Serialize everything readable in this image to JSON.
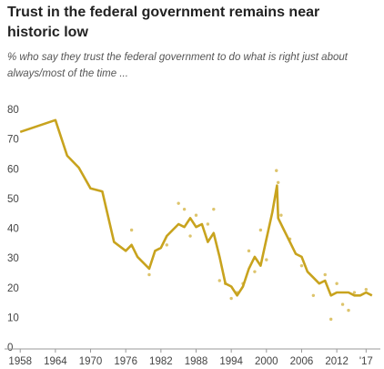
{
  "chart_data": {
    "type": "line",
    "title": [
      "Trust in the federal government remains near",
      "historic low"
    ],
    "subtitle": [
      "% who say they trust the federal government to do what is right just about",
      "always/most of the time ..."
    ],
    "xlim": [
      1957.5,
      2018.5
    ],
    "ylim": [
      0,
      80
    ],
    "yticks": [
      0,
      10,
      20,
      30,
      40,
      50,
      60,
      70,
      80
    ],
    "xticks": [
      1958,
      1964,
      1970,
      1976,
      1982,
      1988,
      1994,
      2000,
      2006,
      2012,
      {
        "value": 2017,
        "label": "'17"
      }
    ],
    "grid": false,
    "series": [
      {
        "color": "#c8a31e",
        "x": [
          1958,
          1964,
          1966,
          1968,
          1970,
          1972,
          1974,
          1976,
          1977,
          1978,
          1980,
          1981,
          1982,
          1983,
          1984,
          1985,
          1986,
          1987,
          1988,
          1989,
          1990,
          1991,
          1992,
          1993,
          1994,
          1995,
          1996,
          1997,
          1998,
          1999,
          2000,
          2001,
          2001.8,
          2002,
          2003,
          2004,
          2005,
          2006,
          2007,
          2008,
          2009,
          2010,
          2011,
          2012,
          2013,
          2014,
          2015,
          2016,
          2017,
          2018
        ],
        "values": [
          73,
          77,
          65,
          61,
          54,
          53,
          36,
          33,
          35,
          31,
          27,
          33,
          34,
          38,
          40,
          42,
          41,
          44,
          41,
          42,
          36,
          39,
          31,
          22,
          21,
          18,
          21,
          27,
          31,
          28,
          37,
          46,
          55,
          44,
          40,
          36,
          32,
          31,
          26,
          24,
          22,
          23,
          18,
          19,
          19,
          19,
          18,
          18,
          19,
          18
        ]
      },
      {
        "color": "#ddc46c",
        "x": [
          1977,
          1980,
          1983,
          1985,
          1986,
          1987,
          1988,
          1990,
          1991,
          1992,
          1993,
          1994,
          1995,
          1996,
          1997,
          1998,
          1999,
          2000,
          2001.7,
          2002,
          2002.5,
          2004,
          2006,
          2008,
          2010,
          2011,
          2012,
          2013,
          2014,
          2015,
          2017
        ],
        "values": [
          40,
          25,
          35,
          49,
          47,
          38,
          45,
          42,
          47,
          23,
          22,
          17,
          19,
          22,
          33,
          26,
          40,
          30,
          60,
          56,
          45,
          37,
          28,
          18,
          25,
          10,
          22,
          15,
          13,
          19,
          20
        ]
      }
    ]
  }
}
